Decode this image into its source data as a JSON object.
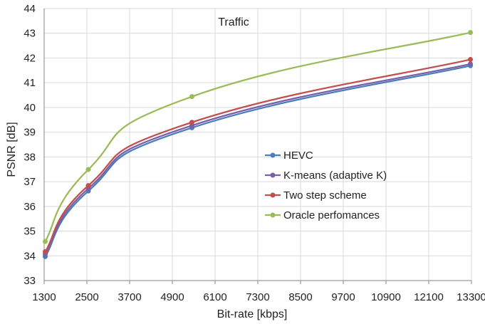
{
  "chart_data": {
    "type": "line",
    "title": "Traffic",
    "xlabel": "Bit-rate [kbps]",
    "ylabel": "PSNR [dB]",
    "xlim": [
      1300,
      13300
    ],
    "ylim": [
      33,
      44
    ],
    "x_ticks": [
      "1300",
      "2500",
      "3700",
      "4900",
      "6100",
      "7300",
      "8500",
      "9700",
      "10900",
      "12100",
      "13300"
    ],
    "y_ticks": [
      "33",
      "34",
      "35",
      "36",
      "37",
      "38",
      "39",
      "40",
      "41",
      "42",
      "43",
      "44"
    ],
    "grid": true,
    "legend_position": "center-right",
    "series": [
      {
        "name": "HEVC",
        "color": "#4a7ebb",
        "points": [
          [
            1330,
            33.97
          ],
          [
            2540,
            36.62
          ],
          [
            5450,
            39.18
          ],
          [
            13270,
            41.69
          ]
        ]
      },
      {
        "name": "K-means (adaptive K)",
        "color": "#7b5ea7",
        "points": [
          [
            1330,
            34.07
          ],
          [
            2540,
            36.72
          ],
          [
            5450,
            39.27
          ],
          [
            13270,
            41.76
          ]
        ]
      },
      {
        "name": "Two step scheme",
        "color": "#c0504d",
        "points": [
          [
            1330,
            34.17
          ],
          [
            2540,
            36.84
          ],
          [
            5450,
            39.4
          ],
          [
            13270,
            41.94
          ]
        ]
      },
      {
        "name": "Oracle perfomances",
        "color": "#9bbb59",
        "points": [
          [
            1330,
            34.58
          ],
          [
            2540,
            37.49
          ],
          [
            5450,
            40.44
          ],
          [
            13270,
            43.03
          ]
        ]
      }
    ]
  }
}
